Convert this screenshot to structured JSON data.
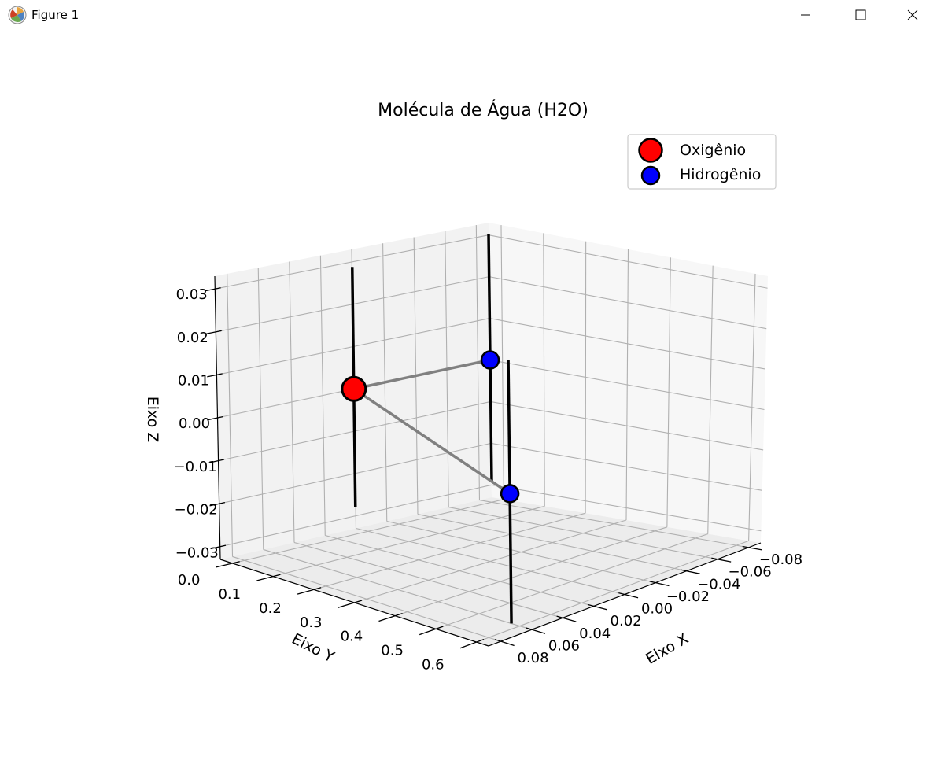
{
  "window": {
    "title": "Figure 1",
    "minimize_glyph": "—",
    "maximize_glyph": "☐",
    "close_glyph": "✕"
  },
  "chart_data": {
    "type": "scatter",
    "subtype": "3d-scatter-with-bonds",
    "title": "Molécula de Água (H2O)",
    "xlabel": "Eixo X",
    "ylabel": "Eixo Y",
    "zlabel": "Eixo Z",
    "xlim": [
      -0.08,
      0.08
    ],
    "ylim": [
      0.0,
      0.6
    ],
    "zlim": [
      -0.03,
      0.03
    ],
    "x_ticks": [
      "−0.08",
      "−0.06",
      "−0.04",
      "−0.02",
      "0.00",
      "0.02",
      "0.04",
      "0.06",
      "0.08"
    ],
    "y_ticks": [
      "0.0",
      "0.1",
      "0.2",
      "0.3",
      "0.4",
      "0.5",
      "0.6"
    ],
    "z_ticks": [
      "−0.03",
      "−0.02",
      "−0.01",
      "0.00",
      "0.01",
      "0.02",
      "0.03"
    ],
    "grid": true,
    "legend_position": "top-right",
    "series": [
      {
        "name": "Oxigênio",
        "color": "#ff0000",
        "points": [
          {
            "x": 0.0,
            "y": 0.0,
            "z": 0.0
          }
        ]
      },
      {
        "name": "Hidrogênio",
        "color": "#0000ff",
        "points": [
          {
            "x": 0.07,
            "y": 0.6,
            "z": 0.0
          },
          {
            "x": -0.08,
            "y": 0.0,
            "z": 0.0
          }
        ]
      }
    ],
    "bonds": [
      {
        "from": "Oxigênio",
        "to": "Hidrogênio 1",
        "color": "#808080"
      },
      {
        "from": "Oxigênio",
        "to": "Hidrogênio 2",
        "color": "#808080"
      }
    ],
    "vertical_lines_color": "#000000"
  }
}
